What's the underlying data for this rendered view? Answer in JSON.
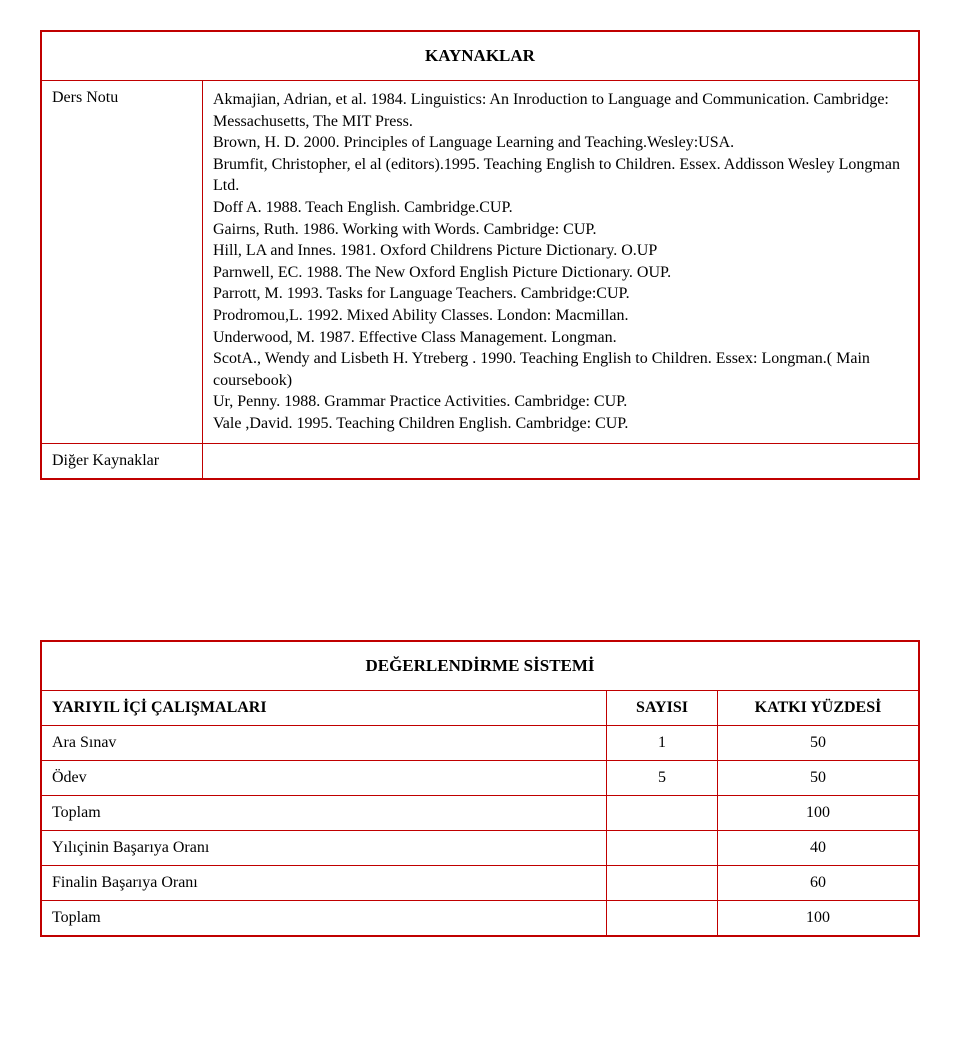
{
  "sources": {
    "heading": "KAYNAKLAR",
    "row1_label": "Ders Notu",
    "references": "Akmajian, Adrian, et al. 1984. Linguistics: An Inroduction to Language and Communication. Cambridge: Messachusetts, The MIT Press.\nBrown, H. D. 2000. Principles of Language Learning and Teaching.Wesley:USA.\nBrumfit, Christopher, el al (editors).1995. Teaching English to Children. Essex. Addisson Wesley Longman Ltd.\nDoff A. 1988. Teach English. Cambridge.CUP.\nGairns, Ruth. 1986. Working with Words. Cambridge: CUP.\nHill, LA and Innes. 1981. Oxford Childrens Picture Dictionary. O.UP\nParnwell, EC. 1988. The New Oxford English Picture Dictionary. OUP.\nParrott, M. 1993. Tasks for Language Teachers. Cambridge:CUP.\nProdromou,L. 1992. Mixed Ability Classes. London: Macmillan.\nUnderwood, M. 1987. Effective Class Management. Longman.\nScotA., Wendy and Lisbeth H. Ytreberg . 1990. Teaching English to Children. Essex: Longman.( Main coursebook)\nUr, Penny. 1988. Grammar Practice Activities. Cambridge: CUP.\nVale ,David. 1995. Teaching Children English. Cambridge: CUP.",
    "row2_label": "Diğer Kaynaklar"
  },
  "evaluation": {
    "heading": "DEĞERLENDİRME SİSTEMİ",
    "col1": "YARIYIL İÇİ ÇALIŞMALARI",
    "col2": "SAYISI",
    "col3": "KATKI YÜZDESİ",
    "rows": [
      {
        "label": "Ara Sınav",
        "count": "1",
        "pct": "50"
      },
      {
        "label": "Ödev",
        "count": "5",
        "pct": "50"
      },
      {
        "label": "Toplam",
        "count": "",
        "pct": "100",
        "bold": true
      },
      {
        "label": "Yılıçinin Başarıya Oranı",
        "count": "",
        "pct": "40",
        "bold": true
      },
      {
        "label": "Finalin Başarıya Oranı",
        "count": "",
        "pct": "60",
        "bold": true
      },
      {
        "label": "Toplam",
        "count": "",
        "pct": "100",
        "bold": true
      }
    ]
  }
}
